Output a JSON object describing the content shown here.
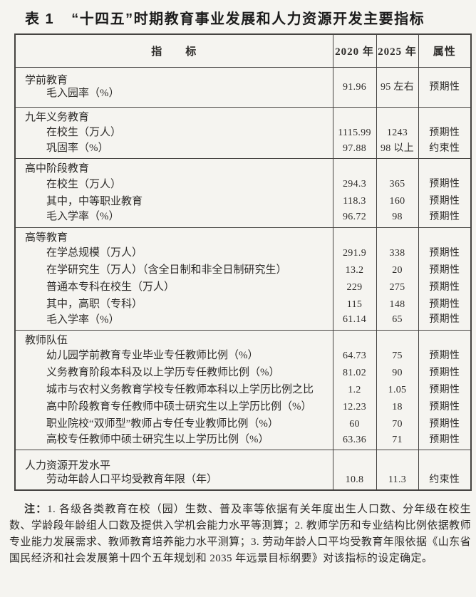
{
  "title": {
    "prefix": "表 1",
    "text": "“十四五”时期教育事业发展和人力资源开发主要指标"
  },
  "table": {
    "headers": {
      "indicator": "指　　标",
      "y2020": "2020 年",
      "y2025": "2025 年",
      "attribute": "属性"
    },
    "sections": [
      {
        "group": "学前教育",
        "rows": [
          {
            "label": "毛入园率（%）",
            "v2020": "91.96",
            "v2025": "95 左右",
            "attr": "预期性"
          }
        ]
      },
      {
        "group": "九年义务教育",
        "rows": [
          {
            "label": "在校生（万人）",
            "v2020": "1115.99",
            "v2025": "1243",
            "attr": "预期性"
          },
          {
            "label": "巩固率（%）",
            "v2020": "97.88",
            "v2025": "98 以上",
            "attr": "约束性"
          }
        ]
      },
      {
        "group": "高中阶段教育",
        "rows": [
          {
            "label": "在校生（万人）",
            "v2020": "294.3",
            "v2025": "365",
            "attr": "预期性"
          },
          {
            "label": "其中，中等职业教育",
            "v2020": "118.3",
            "v2025": "160",
            "attr": "预期性"
          },
          {
            "label": "毛入学率（%）",
            "v2020": "96.72",
            "v2025": "98",
            "attr": "预期性"
          }
        ]
      },
      {
        "group": "高等教育",
        "rows": [
          {
            "label": "在学总规模（万人）",
            "v2020": "291.9",
            "v2025": "338",
            "attr": "预期性"
          },
          {
            "label": "在学研究生（万人）（含全日制和非全日制研究生）",
            "v2020": "13.2",
            "v2025": "20",
            "attr": "预期性"
          },
          {
            "label": "普通本专科在校生（万人）",
            "v2020": "229",
            "v2025": "275",
            "attr": "预期性"
          },
          {
            "label": "其中，高职（专科）",
            "v2020": "115",
            "v2025": "148",
            "attr": "预期性"
          },
          {
            "label": "毛入学率（%）",
            "v2020": "61.14",
            "v2025": "65",
            "attr": "预期性"
          }
        ]
      },
      {
        "group": "教师队伍",
        "rows": [
          {
            "label": "幼儿园学前教育专业毕业专任教师比例（%）",
            "v2020": "64.73",
            "v2025": "75",
            "attr": "预期性"
          },
          {
            "label": "义务教育阶段本科及以上学历专任教师比例（%）",
            "v2020": "81.02",
            "v2025": "90",
            "attr": "预期性"
          },
          {
            "label": "城市与农村义务教育学校专任教师本科以上学历比例之比",
            "v2020": "1.2",
            "v2025": "1.05",
            "attr": "预期性"
          },
          {
            "label": "高中阶段教育专任教师中硕士研究生以上学历比例（%）",
            "v2020": "12.23",
            "v2025": "18",
            "attr": "预期性"
          },
          {
            "label": "职业院校“双师型”教师占专任专业教师比例（%）",
            "v2020": "60",
            "v2025": "70",
            "attr": "预期性"
          },
          {
            "label": "高校专任教师中硕士研究生以上学历比例（%）",
            "v2020": "63.36",
            "v2025": "71",
            "attr": "预期性"
          }
        ]
      },
      {
        "group": "人力资源开发水平",
        "rows": [
          {
            "label": "劳动年龄人口平均受教育年限（年）",
            "v2020": "10.8",
            "v2025": "11.3",
            "attr": "约束性"
          }
        ]
      }
    ]
  },
  "notes": {
    "label": "注：",
    "text": "1. 各级各类教育在校（园）生数、普及率等依据有关年度出生人口数、分年级在校生数、学龄段年龄组人口数及提供入学机会能力水平等测算；2. 教师学历和专业结构比例依据教师专业能力发展需求、教师教育培养能力水平测算；3. 劳动年龄人口平均受教育年限依据《山东省国民经济和社会发展第十四个五年规划和 2035 年远景目标纲要》对该指标的设定确定。"
  },
  "colors": {
    "page_background": "#f5f4f0",
    "border": "#454341",
    "text": "#2e2c2a"
  }
}
